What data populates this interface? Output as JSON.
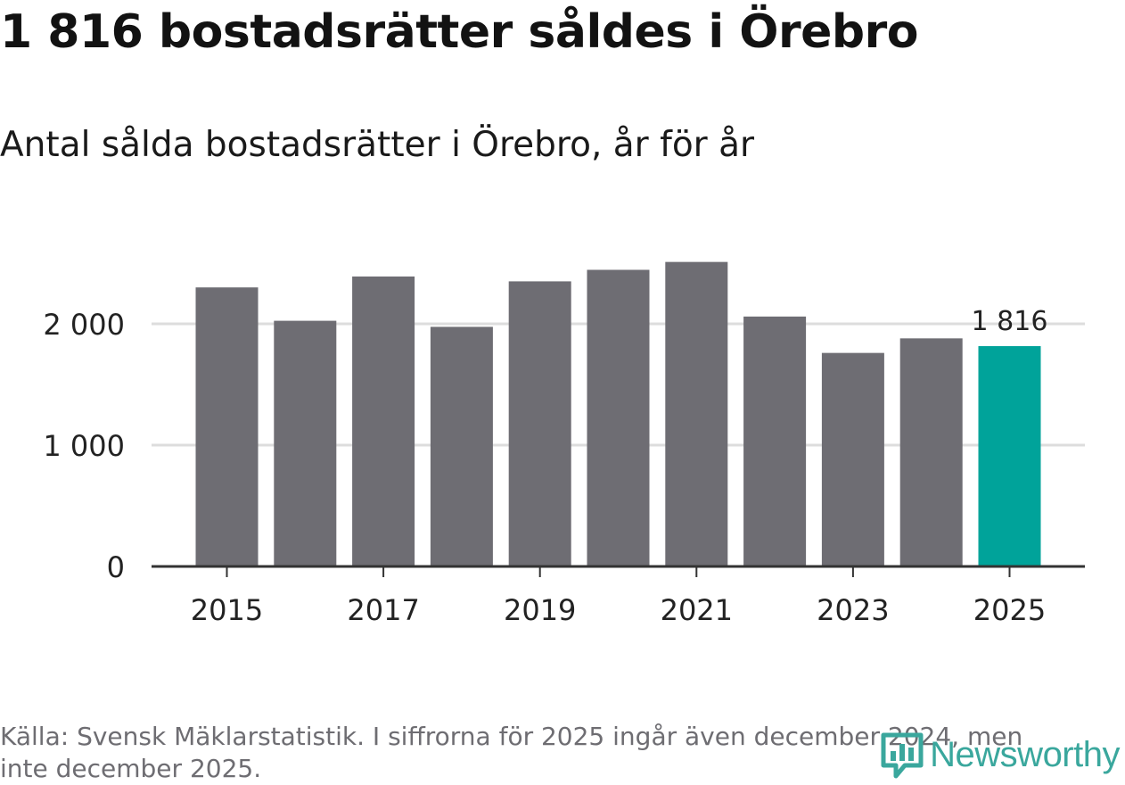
{
  "title": "1 816 bostadsrätter såldes i Örebro",
  "subtitle": "Antal sålda bostadsrätter i Örebro, år för år",
  "source": "Källa: Svensk Mäklarstatistik. I siffrorna för 2025 ingår även december 2024, men inte december 2025.",
  "brand": {
    "name": "Newsworthy",
    "icon": "bar-chart-bubble-icon",
    "color": "#3aa79d"
  },
  "colors": {
    "bar": "#6e6d73",
    "highlight": "#00a39a",
    "grid": "#dddddd",
    "axis": "#333333"
  },
  "chart_data": {
    "type": "bar",
    "title": "1 816 bostadsrätter såldes i Örebro",
    "subtitle": "Antal sålda bostadsrätter i Örebro, år för år",
    "xlabel": "",
    "ylabel": "",
    "categories": [
      "2015",
      "2016",
      "2017",
      "2018",
      "2019",
      "2020",
      "2021",
      "2022",
      "2023",
      "2024",
      "2025"
    ],
    "values": [
      2300,
      2025,
      2390,
      1975,
      2350,
      2445,
      2510,
      2060,
      1760,
      1880,
      1816
    ],
    "highlight_index": 10,
    "data_labels": [
      {
        "index": 10,
        "text": "1 816"
      }
    ],
    "ylim": [
      0,
      2600
    ],
    "yticks": [
      {
        "value": 0,
        "label": "0"
      },
      {
        "value": 1000,
        "label": "1 000"
      },
      {
        "value": 2000,
        "label": "2 000"
      }
    ],
    "xticks": [
      "2015",
      "2017",
      "2019",
      "2021",
      "2023",
      "2025"
    ],
    "grid": true
  }
}
